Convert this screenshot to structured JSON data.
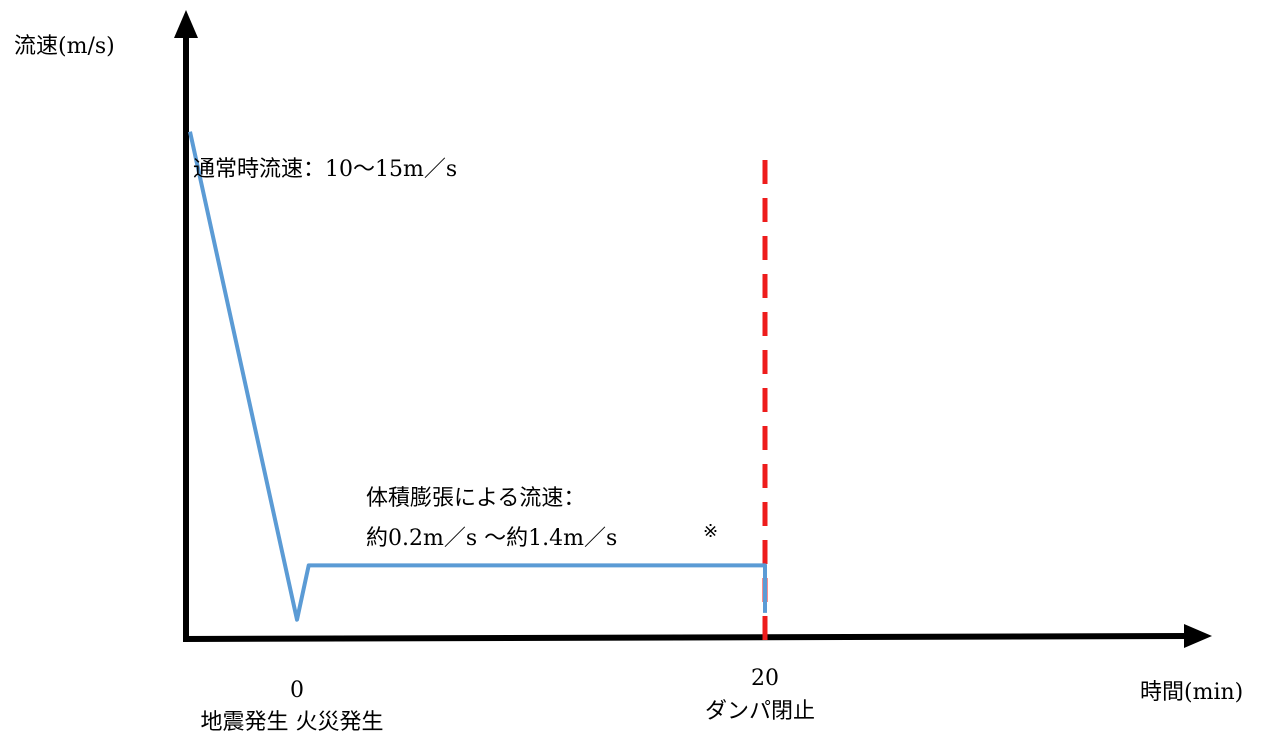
{
  "chart_data": {
    "type": "line",
    "title": "",
    "ylabel": "流速(m/s)",
    "xlabel": "時間(min)",
    "x_ticks": [
      {
        "value": 0,
        "label": "0",
        "caption": "地震発生 火災発生"
      },
      {
        "value": 20,
        "label": "20",
        "caption": "ダンパ閉止"
      }
    ],
    "xlim": [
      -5,
      40
    ],
    "ylim": [
      0,
      18
    ],
    "series": [
      {
        "color": "#5b9bd5",
        "points": [
          {
            "x": -5,
            "y": 15
          },
          {
            "x": 0,
            "y": 0.6
          },
          {
            "x": 0.5,
            "y": 2.2
          },
          {
            "x": 20,
            "y": 2.2
          },
          {
            "x": 20,
            "y": 0.8
          }
        ]
      }
    ],
    "vlines": [
      {
        "x": 20,
        "color": "#ee1c1c",
        "style": "dashed"
      }
    ],
    "annotations": [
      {
        "text": "通常時流速：10～15m／s"
      },
      {
        "text_line1": "体積膨張による流速：",
        "text_line2": "約0.2m／s ～約1.4m／s",
        "mark": "※"
      }
    ],
    "grid": false,
    "legend": "none"
  }
}
